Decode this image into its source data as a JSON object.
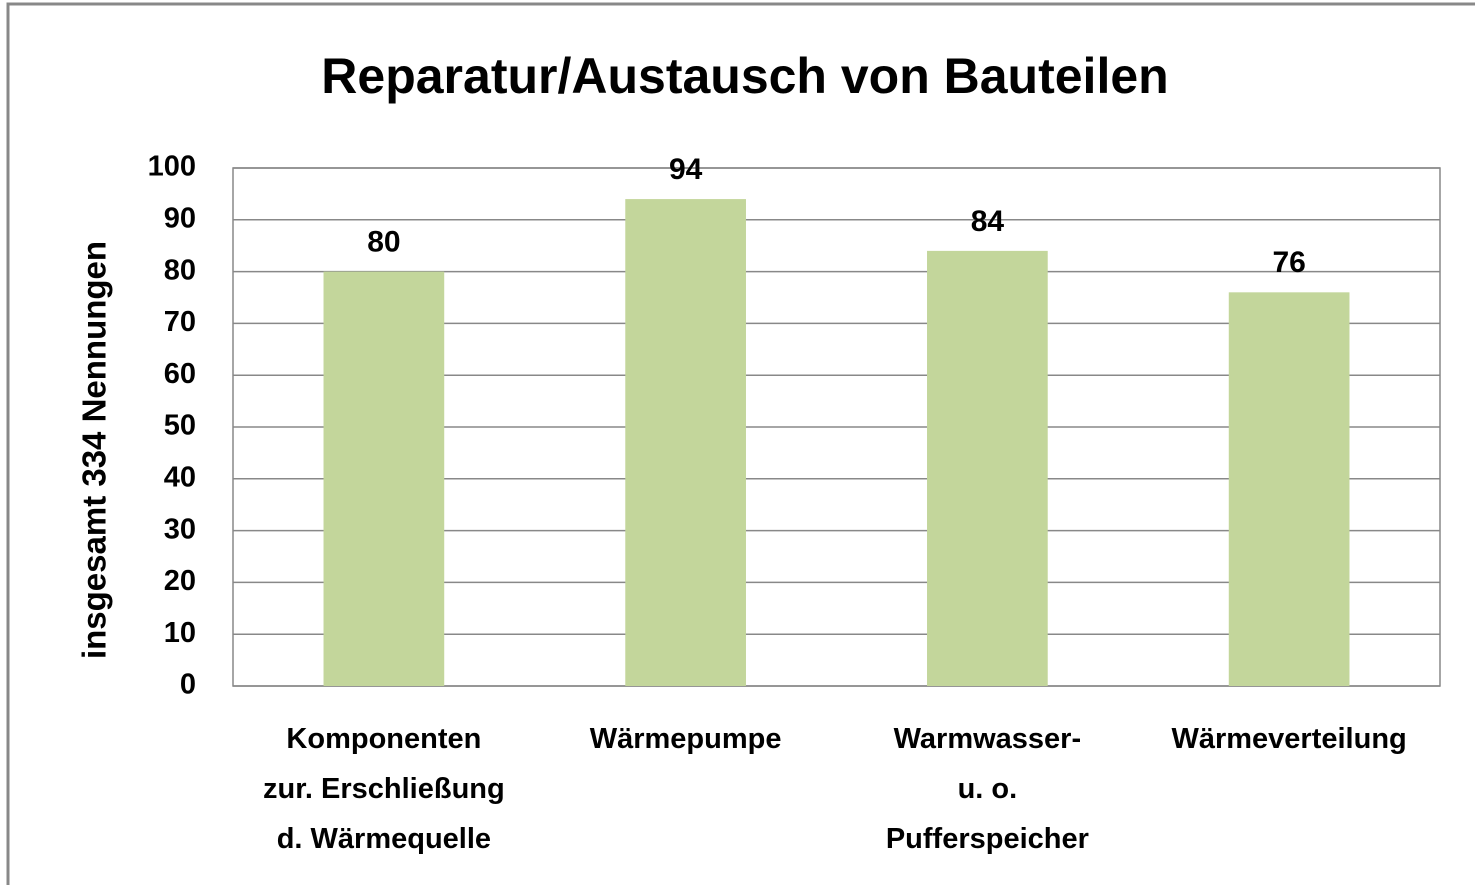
{
  "chart_data": {
    "type": "bar",
    "title": "Reparatur/Austausch von Bauteilen",
    "y_label": "insgesamt 334 Nennungen",
    "categories": [
      "Komponenten\nzur. Erschließung\nd. Wärmequelle",
      "Wärmepumpe",
      "Warmwasser-\nu. o.\nPufferspeicher",
      "Wärmeverteilung"
    ],
    "values": [
      80,
      94,
      84,
      76
    ],
    "color": "#c3d69b",
    "ylim": [
      0,
      100
    ],
    "yticks": [
      0,
      10,
      20,
      30,
      40,
      50,
      60,
      70,
      80,
      90,
      100
    ],
    "grid": true
  }
}
